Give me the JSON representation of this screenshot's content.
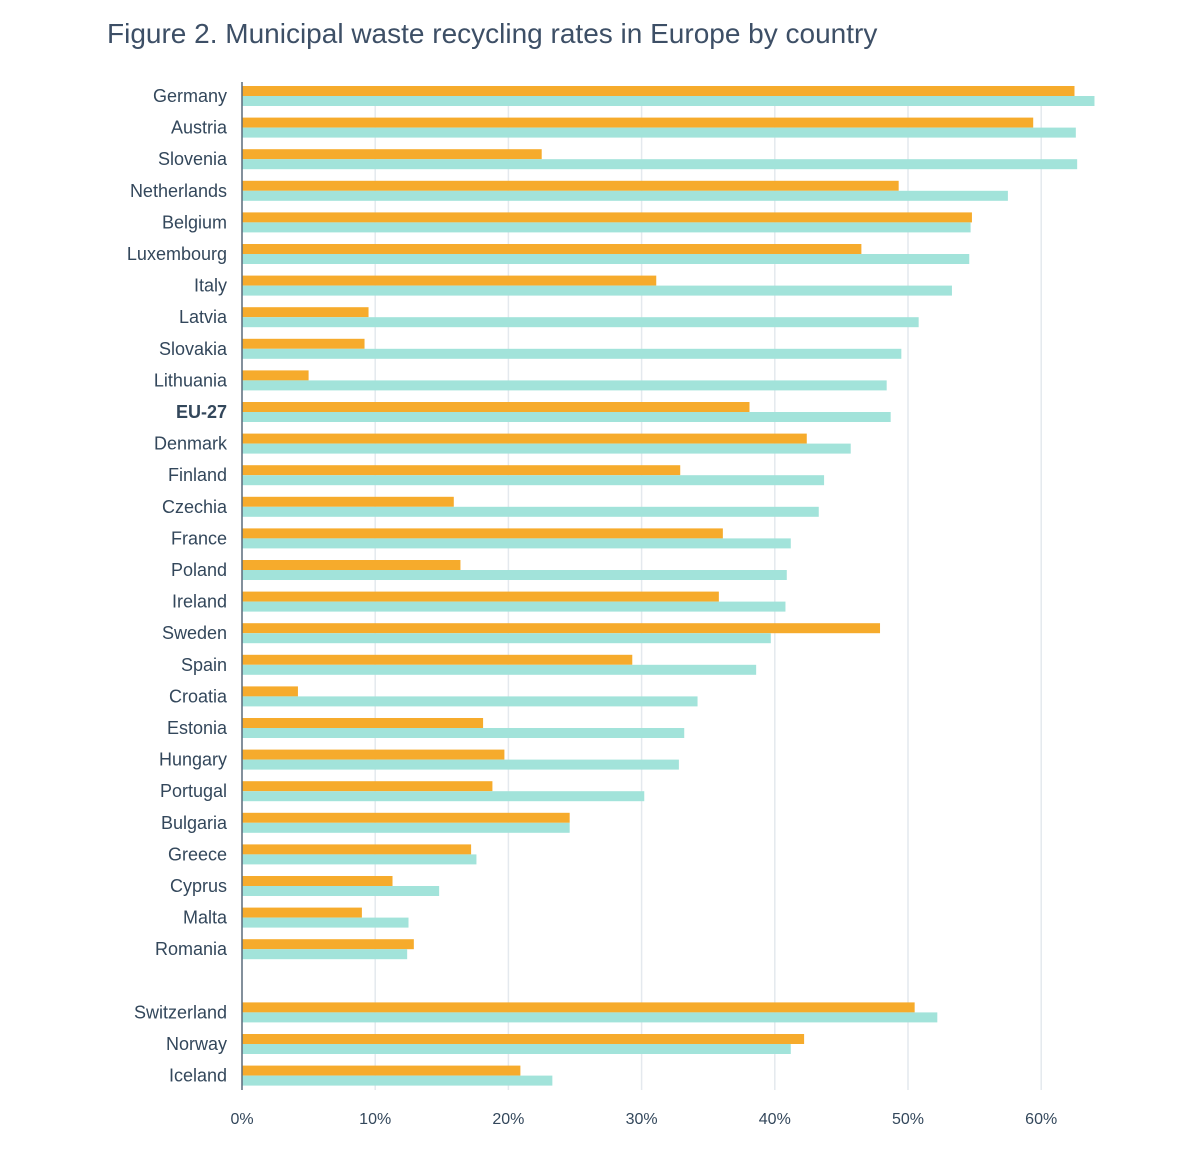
{
  "chart_data": {
    "type": "bar",
    "orientation": "horizontal",
    "title": "Figure 2. Municipal waste recycling rates in Europe by country",
    "xlabel": "",
    "ylabel": "",
    "xlim": [
      0,
      65
    ],
    "x_ticks": [
      0,
      10,
      20,
      30,
      40,
      50,
      60
    ],
    "x_tick_labels": [
      "0%",
      "10%",
      "20%",
      "30%",
      "40%",
      "50%",
      "60%"
    ],
    "grid": "vertical",
    "legend": "none",
    "categories": [
      "Germany",
      "Austria",
      "Slovenia",
      "Netherlands",
      "Belgium",
      "Luxembourg",
      "Italy",
      "Latvia",
      "Slovakia",
      "Lithuania",
      "EU-27",
      "Denmark",
      "Finland",
      "Czechia",
      "France",
      "Poland",
      "Ireland",
      "Sweden",
      "Spain",
      "Croatia",
      "Estonia",
      "Hungary",
      "Portugal",
      "Bulgaria",
      "Greece",
      "Cyprus",
      "Malta",
      "Romania",
      "Switzerland",
      "Norway",
      "Iceland"
    ],
    "highlighted_category": "EU-27",
    "series": [
      {
        "color": "#f6ab2c",
        "values": [
          62.5,
          59.4,
          22.5,
          49.3,
          54.8,
          46.5,
          31.1,
          9.5,
          9.2,
          5.0,
          38.1,
          42.4,
          32.9,
          15.9,
          36.1,
          16.4,
          35.8,
          47.9,
          29.3,
          4.2,
          18.1,
          19.7,
          18.8,
          24.6,
          17.2,
          11.3,
          9.0,
          12.9,
          50.5,
          42.2,
          20.9
        ]
      },
      {
        "color": "#a2e3da",
        "values": [
          64.0,
          62.6,
          62.7,
          57.5,
          54.7,
          54.6,
          53.3,
          50.8,
          49.5,
          48.4,
          48.7,
          45.7,
          43.7,
          43.3,
          41.2,
          40.9,
          40.8,
          39.7,
          38.6,
          34.2,
          33.2,
          32.8,
          30.2,
          24.6,
          17.6,
          14.8,
          12.5,
          12.4,
          52.2,
          41.2,
          23.3
        ]
      }
    ],
    "colors": {
      "axis": "#5a6b7c",
      "grid": "#e4e9ee",
      "text": "#33475b",
      "title": "#3d4f66"
    }
  }
}
